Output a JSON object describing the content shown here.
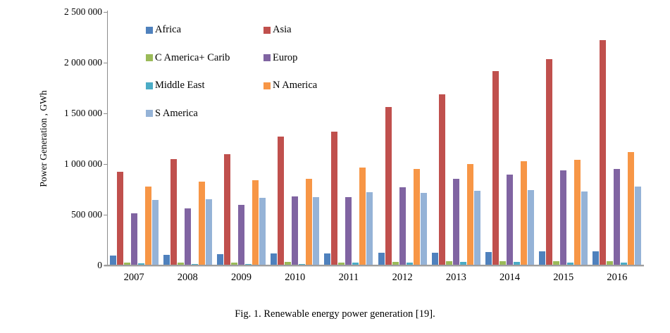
{
  "figure": {
    "caption": "Fig. 1. Renewable energy power generation [19]."
  },
  "chart_data": {
    "type": "bar",
    "title": "",
    "xlabel": "",
    "ylabel": "Power Generation , GWh",
    "ylim": [
      0,
      2500000
    ],
    "y_tick_step": 500000,
    "y_ticks": [
      "2 500 000",
      "2 000 000",
      "1 500 000",
      "1 000 000",
      "500 000",
      "0"
    ],
    "grid": false,
    "legend_position": "upper-left-inside-two-columns",
    "categories": [
      "2007",
      "2008",
      "2009",
      "2010",
      "2011",
      "2012",
      "2013",
      "2014",
      "2015",
      "2016"
    ],
    "series": [
      {
        "name": "Africa",
        "color": "#4F81BD",
        "values": [
          100000,
          105000,
          108000,
          115000,
          118000,
          122000,
          127000,
          134000,
          137000,
          141000
        ]
      },
      {
        "name": "Asia",
        "color": "#C0504D",
        "values": [
          925000,
          1050000,
          1100000,
          1270000,
          1320000,
          1560000,
          1690000,
          1920000,
          2035000,
          2220000
        ]
      },
      {
        "name": "C America+ Carib",
        "color": "#9BBB59",
        "values": [
          25000,
          27000,
          30000,
          32000,
          30000,
          35000,
          42000,
          42000,
          42000,
          44000
        ]
      },
      {
        "name": "Europ",
        "color": "#8064A2",
        "values": [
          515000,
          560000,
          595000,
          680000,
          675000,
          770000,
          855000,
          895000,
          935000,
          950000
        ]
      },
      {
        "name": "Middle East",
        "color": "#4BACC6",
        "values": [
          22000,
          14000,
          15000,
          14000,
          25000,
          25000,
          32000,
          36000,
          26000,
          30000
        ]
      },
      {
        "name": "N America",
        "color": "#F79646",
        "values": [
          775000,
          825000,
          840000,
          855000,
          965000,
          950000,
          1000000,
          1030000,
          1040000,
          1120000
        ]
      },
      {
        "name": "S America",
        "color": "#95B3D7",
        "values": [
          645000,
          650000,
          665000,
          675000,
          725000,
          715000,
          735000,
          740000,
          730000,
          780000
        ]
      }
    ]
  }
}
